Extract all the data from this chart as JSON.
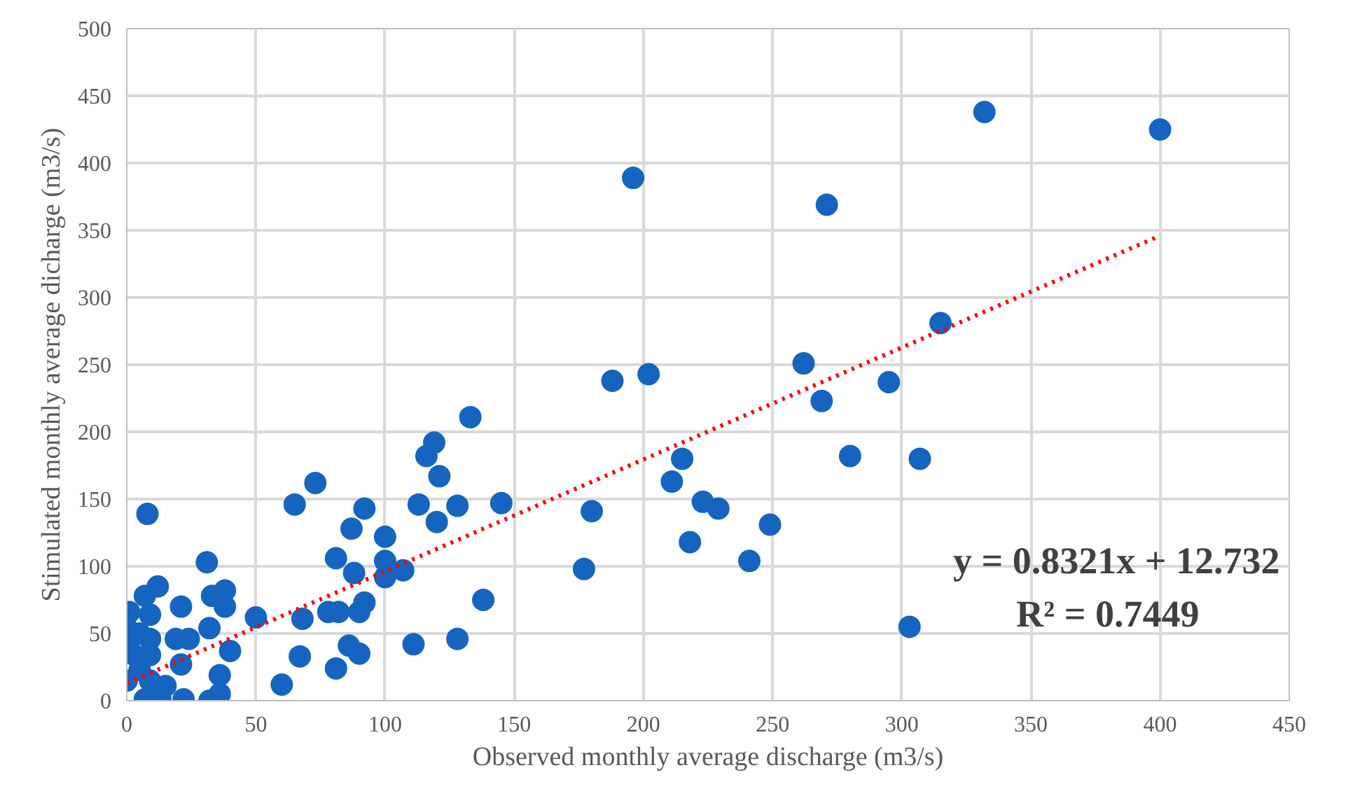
{
  "chart_data": {
    "type": "scatter",
    "xlabel": "Observed monthly average discharge (m3/s)",
    "ylabel": "Stimulated monthly average dicharge (m3/s)",
    "xlim": [
      0,
      450
    ],
    "ylim": [
      0,
      500
    ],
    "xticks": [
      0,
      50,
      100,
      150,
      200,
      250,
      300,
      350,
      400,
      450
    ],
    "yticks": [
      0,
      50,
      100,
      150,
      200,
      250,
      300,
      350,
      400,
      450,
      500
    ],
    "grid": true,
    "marker": "circle",
    "annotations": [
      "y = 0.8321x + 12.732",
      "R² = 0.7449"
    ],
    "series": [
      {
        "color": "#1565c0",
        "x": [
          400,
          332,
          196,
          271,
          315,
          262,
          269,
          295,
          188,
          202,
          280,
          307,
          215,
          211,
          223,
          229,
          249,
          180,
          177,
          218,
          241,
          303,
          145,
          138,
          8,
          73,
          65,
          92,
          87,
          100,
          113,
          128,
          116,
          121,
          119,
          133,
          120,
          81,
          88,
          100,
          100,
          107,
          78,
          82,
          90,
          92,
          50,
          68,
          111,
          128,
          86,
          90,
          67,
          81,
          60,
          31,
          38,
          33,
          38,
          21,
          32,
          12,
          7,
          19,
          24,
          40,
          36,
          36,
          32,
          21,
          15,
          22,
          9,
          9,
          1,
          0,
          0,
          3,
          5,
          0,
          7,
          5,
          9,
          9,
          13
        ],
        "values": [
          425,
          438,
          389,
          369,
          281,
          251,
          223,
          237,
          238,
          243,
          182,
          180,
          180,
          163,
          148,
          143,
          131,
          141,
          98,
          118,
          104,
          55,
          147,
          75,
          139,
          162,
          146,
          143,
          128,
          122,
          146,
          145,
          182,
          167,
          192,
          211,
          133,
          106,
          95,
          104,
          92,
          97,
          66,
          66,
          66,
          73,
          62,
          61,
          42,
          46,
          41,
          35,
          33,
          24,
          12,
          103,
          82,
          78,
          70,
          70,
          54,
          85,
          78,
          46,
          46,
          37,
          19,
          5,
          0,
          27,
          11,
          1,
          15,
          64,
          66,
          54,
          42,
          34,
          23,
          15,
          1,
          50,
          46,
          34,
          2
        ]
      },
      {
        "color": "#ff0000",
        "type": "line",
        "line_style": "dotted",
        "marker": "none",
        "x": [
          0,
          400
        ],
        "values": [
          13,
          346
        ]
      }
    ]
  }
}
